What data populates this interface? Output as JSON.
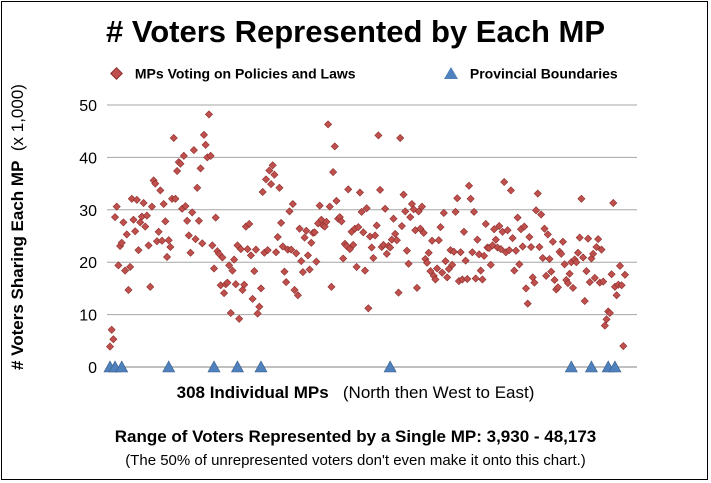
{
  "chart_data": {
    "type": "scatter",
    "title": "# Voters Represented by Each MP",
    "ylabel_main": "# Voters  Sharing  Each  MP",
    "ylabel_unit": "(x 1,000)",
    "xlabel_main": "308  Individual  MPs",
    "xlabel_note": "(North then West to East)",
    "ylim": [
      0,
      50
    ],
    "yticks": [
      "0",
      "10",
      "20",
      "30",
      "40",
      "50"
    ],
    "grid": true,
    "legend_position": "top",
    "series": [
      {
        "name": "MPs Voting on Policies and Laws",
        "color": "#c0504d",
        "marker": "diamond",
        "x": [
          1,
          2,
          3,
          4,
          5,
          6,
          7,
          8,
          9,
          10,
          11,
          12,
          13,
          14,
          15,
          16,
          17,
          18,
          19,
          20,
          21,
          22,
          23,
          24,
          25,
          26,
          27,
          28,
          29,
          30,
          31,
          32,
          33,
          34,
          35,
          36,
          37,
          38,
          39,
          40,
          41,
          42,
          43,
          44,
          45,
          46,
          47,
          48,
          49,
          50,
          51,
          52,
          53,
          54,
          55,
          56,
          57,
          58,
          59,
          60,
          61,
          62,
          63,
          64,
          65,
          66,
          67,
          68,
          69,
          70,
          71,
          72,
          73,
          74,
          75,
          76,
          77,
          78,
          79,
          80,
          81,
          82,
          83,
          84,
          85,
          86,
          87,
          88,
          89,
          90,
          91,
          92,
          93,
          94,
          95,
          96,
          97,
          98,
          99,
          100,
          101,
          102,
          103,
          104,
          105,
          106,
          107,
          108,
          109,
          110,
          111,
          112,
          113,
          114,
          115,
          116,
          117,
          118,
          119,
          120,
          121,
          122,
          123,
          124,
          125,
          126,
          127,
          128,
          129,
          130,
          131,
          132,
          133,
          134,
          135,
          136,
          137,
          138,
          139,
          140,
          141,
          142,
          143,
          144,
          145,
          146,
          147,
          148,
          149,
          150,
          151,
          152,
          153,
          154,
          155,
          156,
          157,
          158,
          159,
          160,
          161,
          162,
          163,
          164,
          165,
          166,
          167,
          168,
          169,
          170,
          171,
          172,
          173,
          174,
          175,
          176,
          177,
          178,
          179,
          180,
          181,
          182,
          183,
          184,
          185,
          186,
          187,
          188,
          189,
          190,
          191,
          192,
          193,
          194,
          195,
          196,
          197,
          198,
          199,
          200,
          201,
          202,
          203,
          204,
          205,
          206,
          207,
          208,
          209,
          210,
          211,
          212,
          213,
          214,
          215,
          216,
          217,
          218,
          219,
          220,
          221,
          222,
          223,
          224,
          225,
          226,
          227,
          228,
          229,
          230,
          231,
          232,
          233,
          234,
          235,
          236,
          237,
          238,
          239,
          240,
          241,
          242,
          243,
          244,
          245,
          246,
          247,
          248,
          249,
          250,
          251,
          252,
          253,
          254,
          255,
          256,
          257,
          258,
          259,
          260,
          261,
          262,
          263,
          264,
          265,
          266,
          267,
          268,
          269,
          270,
          271,
          272,
          273,
          274,
          275,
          276,
          277,
          278,
          279,
          280,
          281,
          282,
          283,
          284,
          285,
          286,
          287,
          288,
          289,
          290,
          291,
          292,
          293,
          294,
          295,
          296,
          297,
          298,
          299,
          300,
          301,
          302,
          303,
          304,
          305,
          306,
          307,
          308
        ],
        "y": [
          3.9,
          7.1,
          5.3,
          28.6,
          30.6,
          19.4,
          23.1,
          23.7,
          27.6,
          18.4,
          25.3,
          14.7,
          19.1,
          32.1,
          28.1,
          25.9,
          31.9,
          22.3,
          27.6,
          28.7,
          31.3,
          26.8,
          28.9,
          23.2,
          15.3,
          30.6,
          35.6,
          35,
          24,
          25.8,
          33.7,
          24.1,
          31.1,
          27.8,
          21,
          24.2,
          22.9,
          32.1,
          43.7,
          32.1,
          37.4,
          39.1,
          38.8,
          30.2,
          40.3,
          30.7,
          27.9,
          25.1,
          21.8,
          29.5,
          41.4,
          24.4,
          34.2,
          27.9,
          37.9,
          23.6,
          44.3,
          42.4,
          40,
          48.2,
          40.3,
          23.2,
          18.8,
          28.5,
          22.1,
          21.6,
          15.6,
          20.9,
          14.1,
          15.8,
          16.1,
          19.4,
          10.3,
          18.4,
          20.5,
          15.8,
          23.2,
          9.2,
          22.5,
          14.7,
          15.7,
          26.8,
          22.5,
          27.3,
          21.3,
          13,
          18.3,
          22.4,
          10.2,
          11.5,
          15,
          33.4,
          21.8,
          35.8,
          22.3,
          37.5,
          34.9,
          38.5,
          36.7,
          21.9,
          24.8,
          34.2,
          27.5,
          23,
          18.2,
          16.2,
          22.4,
          29.7,
          22.4,
          31.1,
          14.7,
          21.7,
          13.7,
          26.4,
          20.2,
          18.1,
          24.7,
          26,
          21.3,
          18.6,
          23.7,
          25.6,
          25.7,
          20.1,
          27.4,
          30.8,
          28.1,
          27,
          26.8,
          27.7,
          46.3,
          30.6,
          15.3,
          37.2,
          42.1,
          31.7,
          28.3,
          28.6,
          27.8,
          20.7,
          23.5,
          23.1,
          33.9,
          22.5,
          25.8,
          23.3,
          26.4,
          19.1,
          26.7,
          33.3,
          29.6,
          25.7,
          18.4,
          30.3,
          11.2,
          24.9,
          22.8,
          20.8,
          25.1,
          27,
          44.2,
          33.8,
          22.9,
          23.3,
          30.2,
          21.6,
          23.1,
          22.8,
          24.3,
          28.3,
          25.4,
          24.2,
          14.2,
          43.7,
          26.9,
          32.9,
          29.7,
          22.2,
          19.7,
          28.6,
          31.1,
          30.1,
          26.1,
          15.1,
          29.7,
          26.4,
          30.6,
          25.6,
          20.6,
          19.9,
          21.8,
          18.3,
          24.1,
          17.4,
          16.7,
          18.8,
          24.2,
          26.7,
          18,
          29.4,
          20.2,
          17.1,
          18.7,
          22.3,
          19.5,
          22,
          29.6,
          32.2,
          16.4,
          21.9,
          16.7,
          25.8,
          20.3,
          16.8,
          34.6,
          32.1,
          21.9,
          29.6,
          16.9,
          24.3,
          21.5,
          18.4,
          16.7,
          21.2,
          27.3,
          22.8,
          22.7,
          19.5,
          23.2,
          26.3,
          24.3,
          22.8,
          26.9,
          22.5,
          25.8,
          35.3,
          21.9,
          26.1,
          22.3,
          33.7,
          24.6,
          18.4,
          22.2,
          28.5,
          19.6,
          26.3,
          23,
          26.8,
          15,
          12.1,
          24.8,
          22.9,
          17.1,
          16.1,
          29.9,
          33.1,
          22.9,
          29.1,
          20.8,
          26.4,
          17.4,
          25.3,
          20.6,
          18.2,
          23.9,
          16.6,
          14.8,
          15.2,
          22,
          21.6,
          23.9,
          19.6,
          16.6,
          16,
          17.8,
          20,
          15.1,
          20.5,
          20,
          21.8,
          24.7,
          32.1,
          20.9,
          12.6,
          18.3,
          24.5,
          16.2,
          20.7,
          21.6,
          17,
          22.9,
          24.4,
          16.1,
          22.4,
          16.3,
          7.9,
          9.1,
          10.6,
          10.3,
          17.7,
          31.3,
          15.3,
          13.7,
          15.7,
          19.3,
          15.6,
          4,
          17.6
        ]
      },
      {
        "name": "Provincial Boundaries",
        "color": "#4f81bd",
        "marker": "triangle",
        "x": [
          1,
          4,
          8,
          36,
          63,
          77,
          91,
          168,
          276,
          288,
          298,
          302
        ],
        "y": [
          0,
          0,
          0,
          0,
          0,
          0,
          0,
          0,
          0,
          0,
          0,
          0
        ]
      }
    ],
    "annotation_range": "Range of Voters Represented by a Single MP:  3,930 - 48,173",
    "annotation_note": "(The 50% of unrepresented voters don't even make it onto this chart.)"
  }
}
